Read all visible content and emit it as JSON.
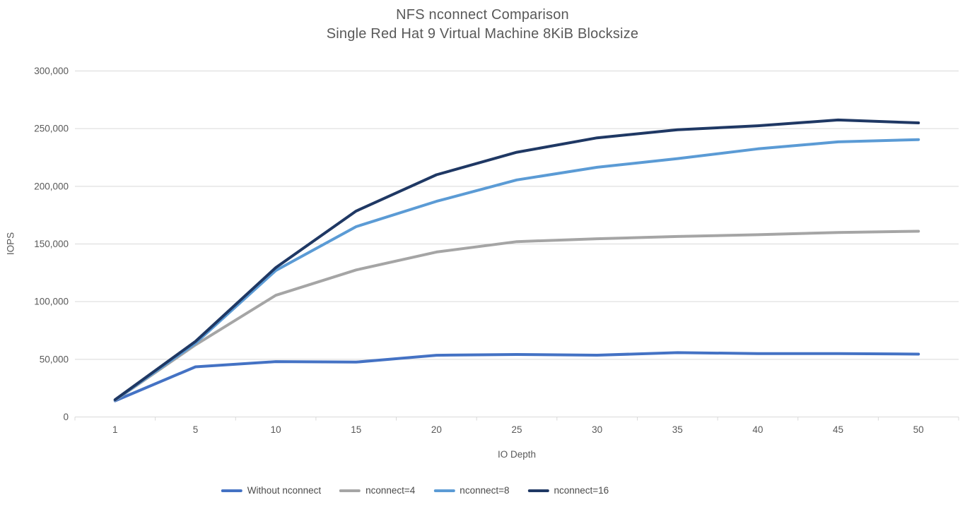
{
  "chart_data": {
    "type": "line",
    "title": "NFS nconnect Comparison",
    "subtitle": "Single Red Hat 9 Virtual Machine 8KiB Blocksize",
    "categories": [
      "1",
      "5",
      "10",
      "15",
      "20",
      "25",
      "30",
      "35",
      "40",
      "45",
      "50"
    ],
    "xlabel": "IO Depth",
    "ylabel": "IOPS",
    "ylim": [
      0,
      300000
    ],
    "ytick_step": 50000,
    "ytick_labels": [
      "0",
      "50,000",
      "100,000",
      "150,000",
      "200,000",
      "250,000",
      "300,000"
    ],
    "grid": true,
    "legend_position": "bottom",
    "series": [
      {
        "name": "Without nconnect",
        "color": "#4472C4",
        "values": [
          14000,
          43500,
          48000,
          47600,
          53500,
          54200,
          53600,
          55800,
          55000,
          55000,
          54500
        ]
      },
      {
        "name": "nconnect=4",
        "color": "#A5A5A5",
        "values": [
          14500,
          62500,
          105500,
          127500,
          143000,
          152000,
          154500,
          156500,
          158000,
          160000,
          161000
        ]
      },
      {
        "name": "nconnect=8",
        "color": "#5B9BD5",
        "values": [
          14700,
          64000,
          127000,
          165000,
          187000,
          205500,
          216500,
          224000,
          232500,
          238500,
          240500
        ]
      },
      {
        "name": "nconnect=16",
        "color": "#1F3864",
        "values": [
          15000,
          65500,
          129500,
          178500,
          210000,
          229500,
          242000,
          249000,
          252500,
          257500,
          255000
        ]
      }
    ]
  },
  "style": {
    "text_color": "#595959",
    "grid_color": "#D9D9D9",
    "axis_color": "#D9D9D9",
    "background": "#FFFFFF"
  }
}
